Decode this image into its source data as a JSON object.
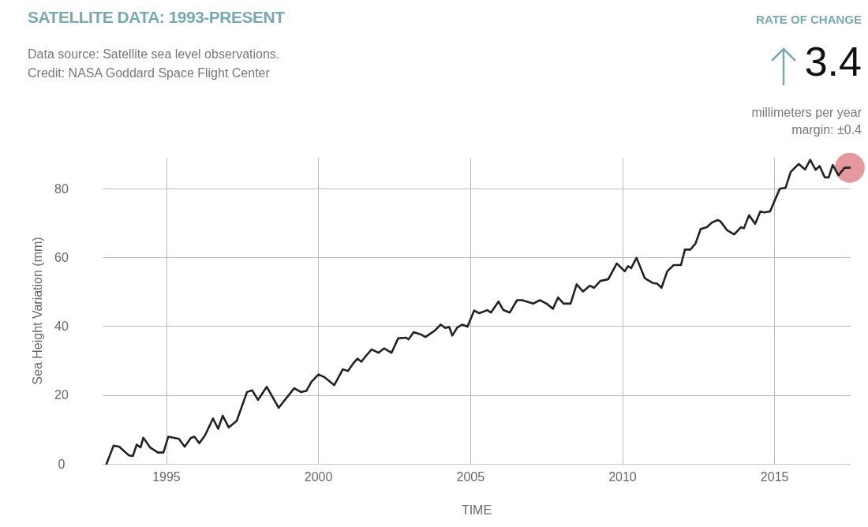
{
  "chart_data": {
    "type": "line",
    "title": "SATELLITE DATA: 1993-PRESENT",
    "xlabel": "TIME",
    "ylabel": "Sea Height Variation (mm)",
    "annotations": [
      "Data source: Satellite sea level observations.",
      "Credit: NASA Goddard Space Flight Center",
      "RATE OF CHANGE",
      "3.4",
      "millimeters per year",
      "margin: ±0.4"
    ],
    "xlim": [
      1992.9,
      2017.5
    ],
    "xticks": [
      1995,
      2000,
      2005,
      2010,
      2015
    ],
    "ylim": [
      0,
      89
    ],
    "yticks": [
      0,
      20,
      40,
      60,
      80
    ],
    "grid": true,
    "marker": "none",
    "line_style": "solid",
    "series": [
      {
        "color": "#222222",
        "x": [
          1993.03,
          1993.26,
          1993.45,
          1993.76,
          1993.9,
          1994.02,
          1994.15,
          1994.24,
          1994.46,
          1994.72,
          1994.9,
          1995.06,
          1995.41,
          1995.6,
          1995.8,
          1995.92,
          1996.08,
          1996.27,
          1996.53,
          1996.7,
          1996.85,
          1997.05,
          1997.31,
          1997.65,
          1997.82,
          1998.01,
          1998.3,
          1998.69,
          1999.2,
          1999.42,
          1999.6,
          1999.77,
          2000.0,
          2000.2,
          2000.52,
          2000.8,
          2000.97,
          2001.15,
          2001.28,
          2001.41,
          2001.58,
          2001.75,
          2001.97,
          2002.16,
          2002.4,
          2002.62,
          2002.88,
          2002.96,
          2003.13,
          2003.35,
          2003.52,
          2003.83,
          2004.02,
          2004.17,
          2004.3,
          2004.4,
          2004.56,
          2004.73,
          2004.9,
          2005.12,
          2005.29,
          2005.55,
          2005.67,
          2005.92,
          2006.07,
          2006.29,
          2006.53,
          2006.7,
          2007.06,
          2007.28,
          2007.5,
          2007.71,
          2007.88,
          2008.06,
          2008.29,
          2008.49,
          2008.7,
          2008.92,
          2009.06,
          2009.27,
          2009.53,
          2009.81,
          2010.07,
          2010.18,
          2010.28,
          2010.46,
          2010.73,
          2010.99,
          2011.14,
          2011.28,
          2011.47,
          2011.68,
          2011.92,
          2012.05,
          2012.23,
          2012.4,
          2012.57,
          2012.77,
          2012.94,
          2013.13,
          2013.22,
          2013.44,
          2013.67,
          2013.89,
          2013.99,
          2014.16,
          2014.36,
          2014.53,
          2014.66,
          2014.85,
          2014.99,
          2015.17,
          2015.36,
          2015.53,
          2015.79,
          2016.0,
          2016.17,
          2016.35,
          2016.48,
          2016.65,
          2016.78,
          2016.91,
          2017.1,
          2017.3,
          2017.47
        ],
        "values": [
          0,
          5.3,
          5.0,
          2.5,
          2.3,
          5.6,
          4.8,
          7.6,
          4.8,
          3.3,
          3.3,
          7.9,
          7.3,
          5.0,
          7.5,
          7.9,
          6.0,
          8.3,
          13.2,
          10.2,
          14.0,
          10.6,
          12.5,
          20.9,
          21.4,
          18.6,
          22.4,
          16.3,
          22.0,
          20.9,
          21.2,
          23.9,
          26.0,
          25.2,
          22.9,
          27.5,
          27.0,
          29.3,
          30.6,
          29.7,
          31.6,
          33.3,
          32.3,
          33.6,
          32.3,
          36.5,
          36.7,
          36.2,
          38.3,
          37.7,
          36.9,
          38.8,
          40.5,
          39.5,
          39.8,
          37.3,
          39.6,
          40.5,
          39.9,
          44.6,
          43.8,
          44.7,
          44.0,
          47.2,
          44.8,
          44.0,
          47.6,
          47.6,
          46.6,
          47.6,
          46.6,
          45.1,
          48.4,
          46.6,
          46.6,
          52.2,
          50.1,
          51.8,
          51.2,
          53.2,
          53.7,
          58.3,
          56.0,
          57.5,
          56.9,
          59.9,
          54.0,
          52.6,
          52.4,
          51.2,
          56.0,
          57.8,
          57.8,
          62.3,
          62.3,
          64.1,
          68.3,
          68.8,
          70.2,
          70.9,
          70.5,
          67.9,
          66.7,
          68.8,
          68.5,
          72.3,
          69.8,
          73.4,
          73.1,
          73.4,
          76.3,
          80.0,
          80.3,
          84.9,
          87.2,
          85.6,
          88.4,
          85.5,
          86.6,
          83.3,
          83.3,
          86.9,
          83.9,
          86.1,
          86.1
        ]
      },
      {
        "type": "scatter",
        "color": "#d9777d",
        "marker": "circle",
        "x": [
          2017.47
        ],
        "values": [
          86.1
        ]
      }
    ]
  }
}
